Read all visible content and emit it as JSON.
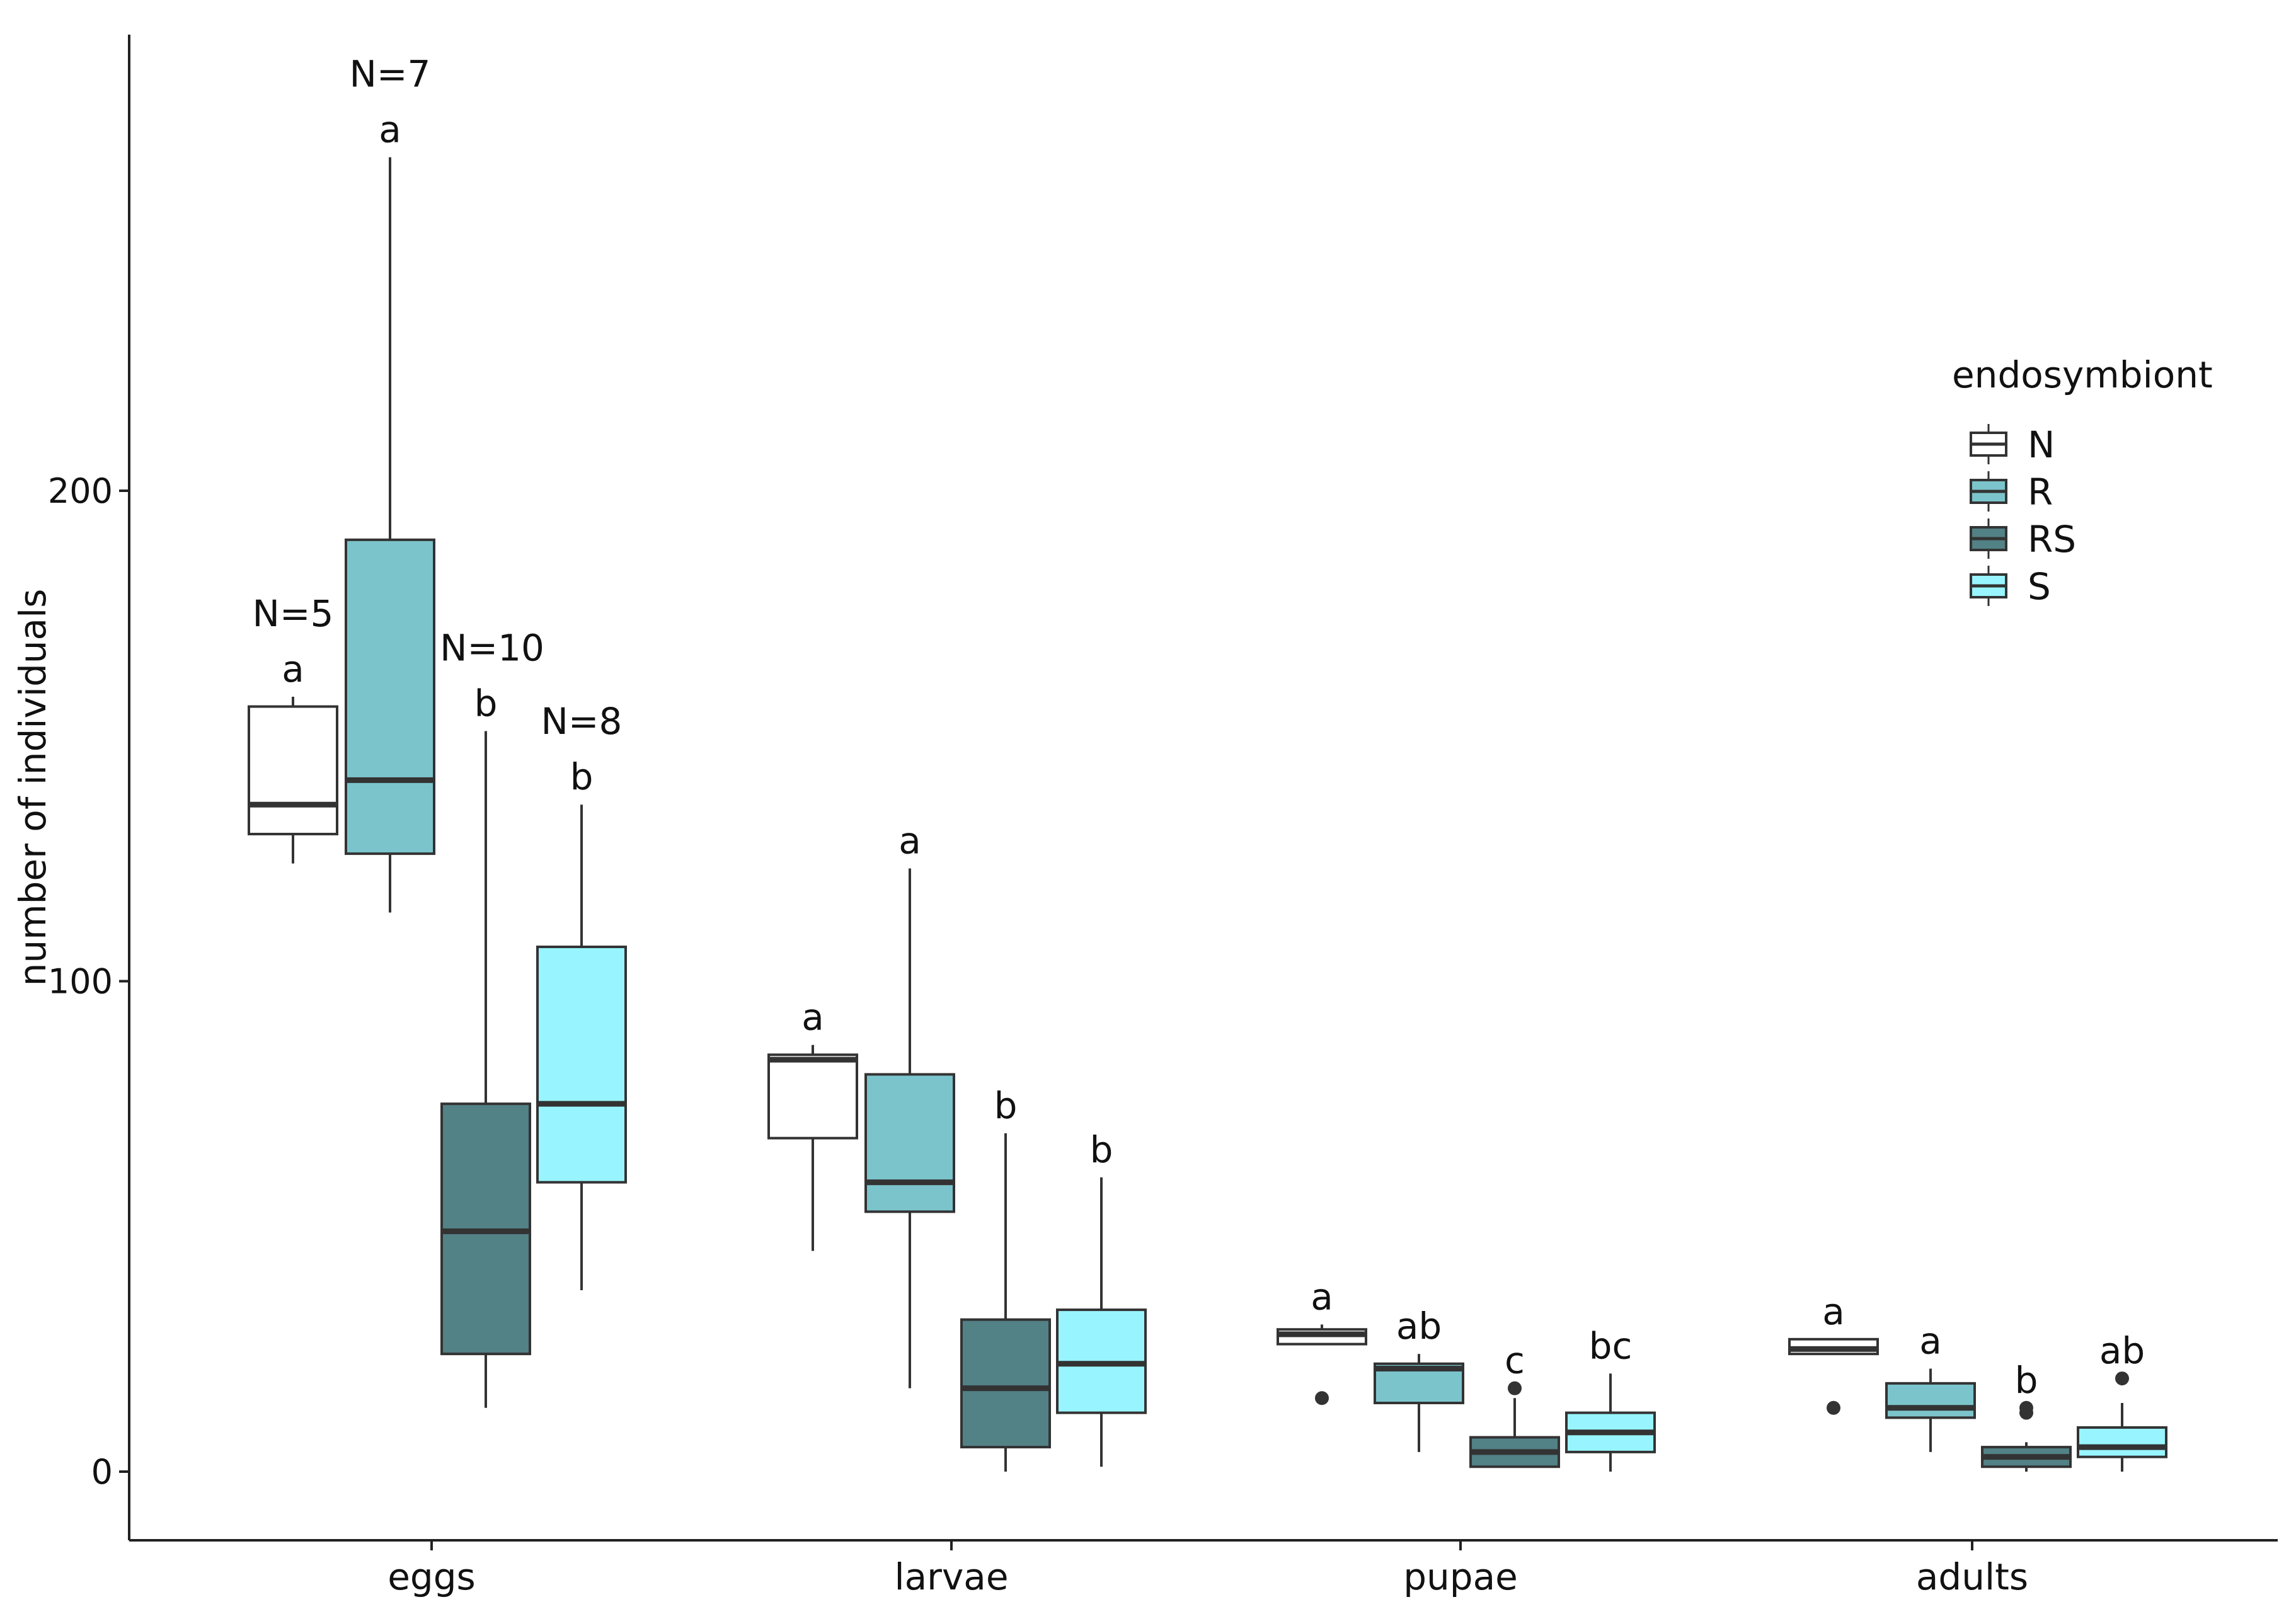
{
  "chart_data": {
    "type": "boxplot",
    "title": "",
    "xlabel": "",
    "ylabel": "number of individuals",
    "ylim": [
      -14,
      293
    ],
    "yticks": [
      0,
      100,
      200
    ],
    "grid": false,
    "categories": [
      "eggs",
      "larvae",
      "pupae",
      "adults"
    ],
    "legend": {
      "title": "endosymbiont",
      "position": "right"
    },
    "series": [
      {
        "name": "N",
        "color": "#ffffff",
        "boxes": [
          {
            "category": "eggs",
            "whisker_low": 124,
            "q1": 130,
            "median": 136,
            "q3": 156,
            "whisker_high": 158,
            "outliers": [],
            "letter": "a",
            "n_label": "N=5"
          },
          {
            "category": "larvae",
            "whisker_low": 45,
            "q1": 68,
            "median": 84,
            "q3": 85,
            "whisker_high": 87,
            "outliers": [],
            "letter": "a",
            "n_label": ""
          },
          {
            "category": "pupae",
            "whisker_low": 26,
            "q1": 26,
            "median": 28,
            "q3": 29,
            "whisker_high": 30,
            "outliers": [
              15
            ],
            "letter": "a",
            "n_label": ""
          },
          {
            "category": "adults",
            "whisker_low": 24,
            "q1": 24,
            "median": 25,
            "q3": 27,
            "whisker_high": 27,
            "outliers": [
              13
            ],
            "letter": "a",
            "n_label": ""
          }
        ]
      },
      {
        "name": "R",
        "color": "#7cc4cc",
        "boxes": [
          {
            "category": "eggs",
            "whisker_low": 114,
            "q1": 126,
            "median": 141,
            "q3": 190,
            "whisker_high": 268,
            "outliers": [],
            "letter": "a",
            "n_label": "N=7"
          },
          {
            "category": "larvae",
            "whisker_low": 17,
            "q1": 53,
            "median": 59,
            "q3": 81,
            "whisker_high": 123,
            "outliers": [],
            "letter": "a",
            "n_label": ""
          },
          {
            "category": "pupae",
            "whisker_low": 4,
            "q1": 14,
            "median": 21,
            "q3": 22,
            "whisker_high": 24,
            "outliers": [],
            "letter": "ab",
            "n_label": ""
          },
          {
            "category": "adults",
            "whisker_low": 4,
            "q1": 11,
            "median": 13,
            "q3": 18,
            "whisker_high": 21,
            "outliers": [],
            "letter": "a",
            "n_label": ""
          }
        ]
      },
      {
        "name": "RS",
        "color": "#528186",
        "boxes": [
          {
            "category": "eggs",
            "whisker_low": 13,
            "q1": 24,
            "median": 49,
            "q3": 75,
            "whisker_high": 151,
            "outliers": [],
            "letter": "b",
            "n_label": "N=10"
          },
          {
            "category": "larvae",
            "whisker_low": 0,
            "q1": 5,
            "median": 17,
            "q3": 31,
            "whisker_high": 69,
            "outliers": [],
            "letter": "b",
            "n_label": ""
          },
          {
            "category": "pupae",
            "whisker_low": 1,
            "q1": 1,
            "median": 4,
            "q3": 7,
            "whisker_high": 15,
            "outliers": [
              17
            ],
            "letter": "c",
            "n_label": ""
          },
          {
            "category": "adults",
            "whisker_low": 0,
            "q1": 1,
            "median": 3,
            "q3": 5,
            "whisker_high": 6,
            "outliers": [
              12,
              13
            ],
            "letter": "b",
            "n_label": ""
          }
        ]
      },
      {
        "name": "S",
        "color": "#98f5ff",
        "boxes": [
          {
            "category": "eggs",
            "whisker_low": 37,
            "q1": 59,
            "median": 75,
            "q3": 107,
            "whisker_high": 136,
            "outliers": [],
            "letter": "b",
            "n_label": "N=8"
          },
          {
            "category": "larvae",
            "whisker_low": 1,
            "q1": 12,
            "median": 22,
            "q3": 33,
            "whisker_high": 60,
            "outliers": [],
            "letter": "b",
            "n_label": ""
          },
          {
            "category": "pupae",
            "whisker_low": 0,
            "q1": 4,
            "median": 8,
            "q3": 12,
            "whisker_high": 20,
            "outliers": [],
            "letter": "bc",
            "n_label": ""
          },
          {
            "category": "adults",
            "whisker_low": 0,
            "q1": 3,
            "median": 5,
            "q3": 9,
            "whisker_high": 14,
            "outliers": [
              19
            ],
            "letter": "ab",
            "n_label": ""
          }
        ]
      }
    ]
  }
}
